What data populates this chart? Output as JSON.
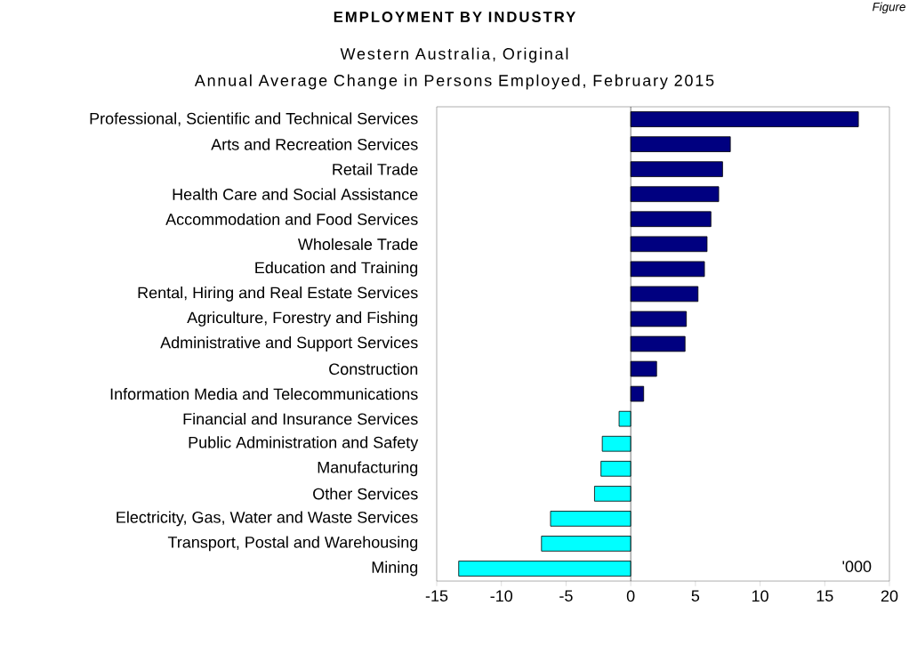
{
  "chart_data": {
    "type": "bar",
    "orientation": "horizontal",
    "title": "EMPLOYMENT BY INDUSTRY",
    "subtitle": "Western Australia, Original",
    "annotations": [
      "Figure",
      "Annual Average Change in Persons Employed, February 2015",
      "'000"
    ],
    "categories": [
      "Professional, Scientific and Technical Services",
      "Arts and Recreation Services",
      "Retail Trade",
      "Health Care and Social Assistance",
      "Accommodation and Food Services",
      "Wholesale Trade",
      "Education and Training",
      "Rental, Hiring and Real Estate Services",
      "Agriculture, Forestry and Fishing",
      "Administrative and Support Services",
      "Construction",
      "Information Media and Telecommunications",
      "Financial and Insurance Services",
      "Public Administration and Safety",
      "Manufacturing",
      "Other Services",
      "Electricity, Gas, Water and Waste Services",
      "Transport, Postal and Warehousing",
      "Mining"
    ],
    "values": [
      17.6,
      7.7,
      7.1,
      6.8,
      6.2,
      5.9,
      5.7,
      5.2,
      4.3,
      4.2,
      2.0,
      1.0,
      -0.9,
      -2.2,
      -2.3,
      -2.8,
      -6.2,
      -6.9,
      -13.3
    ],
    "colors": [
      "#000080",
      "#000080",
      "#000080",
      "#000080",
      "#000080",
      "#000080",
      "#000080",
      "#000080",
      "#000080",
      "#000080",
      "#000080",
      "#000080",
      "#00ffff",
      "#00ffff",
      "#00ffff",
      "#00ffff",
      "#00ffff",
      "#00ffff",
      "#00ffff"
    ],
    "xlim": [
      -15,
      20
    ],
    "xticks": [
      -15,
      -10,
      -5,
      0,
      5,
      10,
      15,
      20
    ],
    "grid": false,
    "ref_lines": [
      {
        "axis": "x",
        "value": 0,
        "color": "#000000"
      }
    ]
  }
}
